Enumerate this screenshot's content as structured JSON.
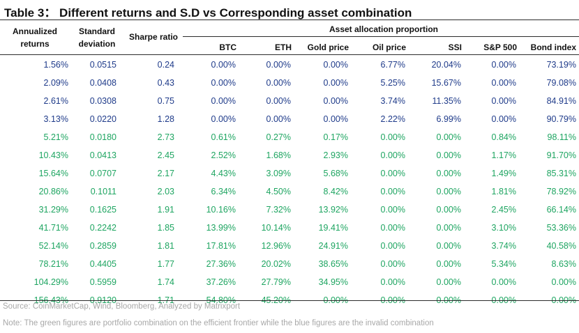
{
  "title": "Table 3： Different returns and S.D vs Corresponding asset combination",
  "headers": {
    "annualized": "Annualized",
    "returns": "returns",
    "standard": "Standard",
    "deviation": "deviation",
    "sharpe": "Sharpe ratio",
    "group": "Asset allocation proportion",
    "assets": [
      "BTC",
      "ETH",
      "Gold price",
      "Oil price",
      "SSI",
      "S&P 500",
      "Bond index"
    ]
  },
  "rows": [
    {
      "type": "blue",
      "cells": [
        "1.56%",
        "0.0515",
        "0.24",
        "0.00%",
        "0.00%",
        "0.00%",
        "6.77%",
        "20.04%",
        "0.00%",
        "73.19%"
      ]
    },
    {
      "type": "blue",
      "cells": [
        "2.09%",
        "0.0408",
        "0.43",
        "0.00%",
        "0.00%",
        "0.00%",
        "5.25%",
        "15.67%",
        "0.00%",
        "79.08%"
      ]
    },
    {
      "type": "blue",
      "cells": [
        "2.61%",
        "0.0308",
        "0.75",
        "0.00%",
        "0.00%",
        "0.00%",
        "3.74%",
        "11.35%",
        "0.00%",
        "84.91%"
      ]
    },
    {
      "type": "blue",
      "cells": [
        "3.13%",
        "0.0220",
        "1.28",
        "0.00%",
        "0.00%",
        "0.00%",
        "2.22%",
        "6.99%",
        "0.00%",
        "90.79%"
      ]
    },
    {
      "type": "green",
      "cells": [
        "5.21%",
        "0.0180",
        "2.73",
        "0.61%",
        "0.27%",
        "0.17%",
        "0.00%",
        "0.00%",
        "0.84%",
        "98.11%"
      ]
    },
    {
      "type": "green",
      "cells": [
        "10.43%",
        "0.0413",
        "2.45",
        "2.52%",
        "1.68%",
        "2.93%",
        "0.00%",
        "0.00%",
        "1.17%",
        "91.70%"
      ]
    },
    {
      "type": "green",
      "cells": [
        "15.64%",
        "0.0707",
        "2.17",
        "4.43%",
        "3.09%",
        "5.68%",
        "0.00%",
        "0.00%",
        "1.49%",
        "85.31%"
      ]
    },
    {
      "type": "green",
      "cells": [
        "20.86%",
        "0.1011",
        "2.03",
        "6.34%",
        "4.50%",
        "8.42%",
        "0.00%",
        "0.00%",
        "1.81%",
        "78.92%"
      ]
    },
    {
      "type": "green",
      "cells": [
        "31.29%",
        "0.1625",
        "1.91",
        "10.16%",
        "7.32%",
        "13.92%",
        "0.00%",
        "0.00%",
        "2.45%",
        "66.14%"
      ]
    },
    {
      "type": "green",
      "cells": [
        "41.71%",
        "0.2242",
        "1.85",
        "13.99%",
        "10.14%",
        "19.41%",
        "0.00%",
        "0.00%",
        "3.10%",
        "53.36%"
      ]
    },
    {
      "type": "green",
      "cells": [
        "52.14%",
        "0.2859",
        "1.81",
        "17.81%",
        "12.96%",
        "24.91%",
        "0.00%",
        "0.00%",
        "3.74%",
        "40.58%"
      ]
    },
    {
      "type": "green",
      "cells": [
        "78.21%",
        "0.4405",
        "1.77",
        "27.36%",
        "20.02%",
        "38.65%",
        "0.00%",
        "0.00%",
        "5.34%",
        "8.63%"
      ]
    },
    {
      "type": "green",
      "cells": [
        "104.29%",
        "0.5959",
        "1.74",
        "37.26%",
        "27.79%",
        "34.95%",
        "0.00%",
        "0.00%",
        "0.00%",
        "0.00%"
      ]
    },
    {
      "type": "green",
      "cells": [
        "156.43%",
        "0.9120",
        "1.71",
        "54.80%",
        "45.20%",
        "0.00%",
        "0.00%",
        "0.00%",
        "0.00%",
        "0.00%"
      ]
    }
  ],
  "source": "Source: CoinMarketCap, Wind, Bloomberg, Analyzed by Matrixport",
  "note": "Note: The green figures are portfolio combination on the efficient frontier while the blue figures are the invalid combination",
  "colors": {
    "blue_text": "#1f3b8a",
    "green_text": "#1ea561",
    "footnote_text": "#a8a8a8"
  }
}
